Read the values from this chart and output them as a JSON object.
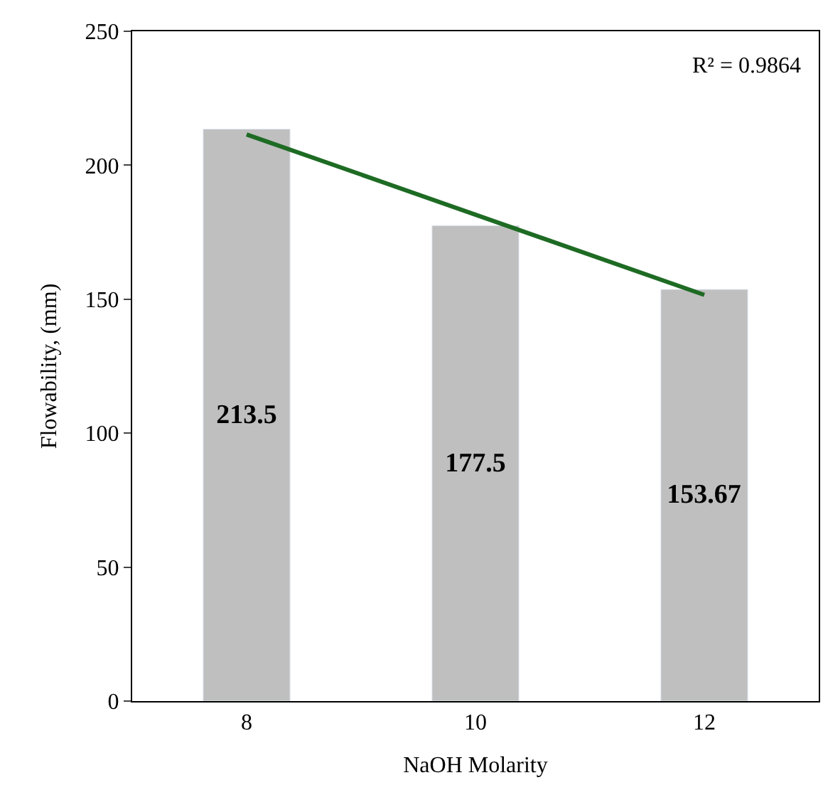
{
  "chart_data": {
    "type": "bar",
    "xlabel": "NaOH Molarity",
    "ylabel": "Flowability, (mm)",
    "categories": [
      "8",
      "10",
      "12"
    ],
    "series": [
      {
        "color": "#bfbfbf",
        "values": [
          213.5,
          177.5,
          153.67
        ],
        "value_labels": [
          "213.5",
          "177.5",
          "153.67"
        ]
      },
      {
        "type": "line",
        "color": "#1e6b24",
        "x": [
          "8",
          "12"
        ],
        "values": [
          211.5,
          151.6
        ]
      }
    ],
    "ylim": [
      0,
      250
    ],
    "yticks": [
      0,
      50,
      100,
      150,
      200,
      250
    ],
    "annotations": [
      "R² = 0.9864"
    ]
  }
}
